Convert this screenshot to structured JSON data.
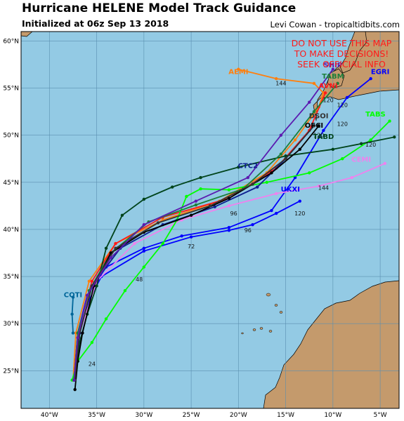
{
  "header": {
    "title": "Hurricane HELENE Model Track Guidance",
    "subtitle": "Initialized at 06z Sep 13 2018",
    "credit": "Levi Cowan - tropicaltidbits.com"
  },
  "warning": {
    "lines": [
      "DO NOT USE THIS MAP",
      "TO MAKE DECISIONS!",
      "SEEK OFFICIAL INFO"
    ],
    "color": "#ff1a1a"
  },
  "colors": {
    "ocean": "#93cae4",
    "land": "#c49a6c",
    "grid": "#5b8fb0"
  },
  "axes": {
    "lon_range": [
      -43,
      -3
    ],
    "lat_range": [
      21,
      61
    ],
    "lon_ticks": [
      -40,
      -35,
      -30,
      -25,
      -20,
      -15,
      -10,
      -5
    ],
    "lon_tick_labels": [
      "40°W",
      "35°W",
      "30°W",
      "25°W",
      "20°W",
      "15°W",
      "10°W",
      "5°W"
    ],
    "lat_ticks": [
      25,
      30,
      35,
      40,
      45,
      50,
      55,
      60
    ],
    "lat_tick_labels": [
      "25°N",
      "30°N",
      "35°N",
      "40°N",
      "45°N",
      "50°N",
      "55°N",
      "60°N"
    ]
  },
  "models": [
    {
      "name": "AEMI",
      "color": "#ff7f0e",
      "label_at": [
        -20,
        56.5
      ],
      "track": [
        [
          -37.5,
          24
        ],
        [
          -37.2,
          29
        ],
        [
          -35.8,
          34.5
        ],
        [
          -33,
          38.5
        ],
        [
          -28,
          41
        ],
        [
          -22,
          43
        ],
        [
          -17,
          46
        ],
        [
          -14,
          49.5
        ],
        [
          -11.5,
          53
        ],
        [
          -11,
          54.5
        ],
        [
          -12,
          55.5
        ],
        [
          -16,
          56
        ],
        [
          -20,
          57
        ]
      ],
      "hours": [
        {
          "text": "144",
          "at": [
            -15.5,
            55.3
          ]
        }
      ]
    },
    {
      "name": "AVNI",
      "color": "#ff1a1a",
      "label_at": [
        -10.5,
        55
      ],
      "track": [
        [
          -37.4,
          24
        ],
        [
          -37,
          29
        ],
        [
          -35.5,
          34.5
        ],
        [
          -33,
          38.5
        ],
        [
          -28,
          41.3
        ],
        [
          -21,
          43.3
        ],
        [
          -16,
          46.5
        ],
        [
          -12.5,
          50.5
        ],
        [
          -10.8,
          54.5
        ]
      ],
      "hours": [
        {
          "text": "120",
          "at": [
            -10.5,
            53.5
          ]
        }
      ]
    },
    {
      "name": "EGRI",
      "color": "#0000ff",
      "label_at": [
        -5,
        56.5
      ],
      "track": [
        [
          -37.4,
          24
        ],
        [
          -37,
          29
        ],
        [
          -36,
          33
        ],
        [
          -34,
          36
        ],
        [
          -30,
          38
        ],
        [
          -26,
          39.3
        ],
        [
          -21,
          40.2
        ],
        [
          -16.5,
          42
        ],
        [
          -14,
          45.5
        ],
        [
          -11,
          50.5
        ],
        [
          -8.5,
          54
        ],
        [
          -6,
          56
        ]
      ],
      "hours": [
        {
          "text": "120",
          "at": [
            -9,
            51
          ]
        }
      ]
    },
    {
      "name": "UKXI",
      "color": "#0000ff",
      "label_at": [
        -14.5,
        44
      ],
      "track": [
        [
          -37.3,
          24
        ],
        [
          -36.8,
          29
        ],
        [
          -35.8,
          32.5
        ],
        [
          -34.5,
          35
        ],
        [
          -30,
          37.7
        ],
        [
          -25,
          39.2
        ],
        [
          -21,
          39.9
        ],
        [
          -18.5,
          40.5
        ],
        [
          -16,
          41.7
        ],
        [
          -13.5,
          43
        ]
      ],
      "hours": [
        {
          "text": "72",
          "at": [
            -25,
            38
          ]
        },
        {
          "text": "96",
          "at": [
            -19,
            39.7
          ]
        },
        {
          "text": "120",
          "at": [
            -13.5,
            41.5
          ]
        }
      ]
    },
    {
      "name": "CEMI",
      "color": "#ee82ee",
      "label_at": [
        -7,
        47.2
      ],
      "track": [
        [
          -37.4,
          24
        ],
        [
          -36.8,
          29
        ],
        [
          -35,
          34.5
        ],
        [
          -31,
          38.5
        ],
        [
          -26,
          41
        ],
        [
          -21,
          42.5
        ],
        [
          -16,
          43.8
        ],
        [
          -11.5,
          44.6
        ],
        [
          -8,
          45.5
        ],
        [
          -4.5,
          47
        ]
      ],
      "hours": [
        {
          "text": "96",
          "at": [
            -20.5,
            41.5
          ]
        },
        {
          "text": "144",
          "at": [
            -11,
            44.2
          ]
        }
      ]
    },
    {
      "name": "TABS",
      "color": "#00ff00",
      "label_at": [
        -5.5,
        52
      ],
      "track": [
        [
          -37.6,
          24
        ],
        [
          -37,
          26
        ],
        [
          -35.5,
          28
        ],
        [
          -34,
          30.5
        ],
        [
          -32,
          33.5
        ],
        [
          -30,
          36
        ],
        [
          -28,
          38.5
        ],
        [
          -26.5,
          41
        ],
        [
          -25.5,
          43.5
        ],
        [
          -24,
          44.3
        ],
        [
          -21,
          44.2
        ],
        [
          -17,
          45
        ],
        [
          -12.5,
          46
        ],
        [
          -9,
          47.5
        ],
        [
          -6,
          49.5
        ],
        [
          -4,
          51.5
        ]
      ],
      "hours": [
        {
          "text": "24",
          "at": [
            -35.5,
            25.5
          ]
        },
        {
          "text": "48",
          "at": [
            -30.5,
            34.5
          ]
        }
      ]
    },
    {
      "name": "TABD",
      "color": "#00441b",
      "label_at": [
        -11,
        49.6
      ],
      "track": [
        [
          -37.4,
          24
        ],
        [
          -36.8,
          28
        ],
        [
          -36,
          31
        ],
        [
          -35,
          34
        ],
        [
          -34,
          38
        ],
        [
          -32.3,
          41.5
        ],
        [
          -30,
          43.2
        ],
        [
          -27,
          44.5
        ],
        [
          -24,
          45.5
        ],
        [
          -20,
          46.6
        ],
        [
          -15,
          47.8
        ],
        [
          -10,
          48.5
        ],
        [
          -7,
          49.1
        ],
        [
          -3.5,
          49.8
        ]
      ],
      "hours": [
        {
          "text": "120",
          "at": [
            -6,
            48.8
          ]
        }
      ]
    },
    {
      "name": "TABM",
      "color": "#1b7f3a",
      "label_at": [
        -10,
        56
      ],
      "track": [
        [
          -37.4,
          24
        ],
        [
          -37,
          29
        ],
        [
          -35.8,
          33.5
        ],
        [
          -33.5,
          37.5
        ],
        [
          -29.5,
          40.8
        ],
        [
          -24.5,
          42.6
        ],
        [
          -19.5,
          44.3
        ],
        [
          -15.5,
          48
        ],
        [
          -12,
          52.5
        ],
        [
          -9.5,
          55.5
        ]
      ],
      "hours": [
        {
          "text": "120",
          "at": [
            -9,
            53
          ]
        }
      ]
    },
    {
      "name": "CTC2",
      "color": "#0d1f8f",
      "label_at": [
        -19,
        46.5
      ],
      "track": [
        [
          -37.4,
          24
        ],
        [
          -36.8,
          29
        ],
        [
          -35.5,
          34
        ],
        [
          -32.5,
          38
        ],
        [
          -28,
          40.5
        ],
        [
          -22.5,
          42.4
        ],
        [
          -18,
          44.5
        ],
        [
          -15,
          47.5
        ],
        [
          -12,
          51
        ]
      ],
      "hours": []
    },
    {
      "name": "COTI",
      "color": "#006699",
      "label_at": [
        -37.5,
        32.8
      ],
      "track": [
        [
          -37.5,
          29
        ],
        [
          -37.6,
          31
        ],
        [
          -37.5,
          32.8
        ]
      ],
      "hours": []
    },
    {
      "name": "OFCI",
      "color": "#000000",
      "label_at": [
        -12,
        50.8
      ],
      "track": [
        [
          -37.3,
          23
        ],
        [
          -37,
          26
        ],
        [
          -36.5,
          29
        ],
        [
          -35.3,
          34
        ],
        [
          -33.5,
          37.5
        ],
        [
          -30,
          39.7
        ],
        [
          -25,
          41.5
        ],
        [
          -21,
          43.3
        ],
        [
          -16.5,
          46
        ],
        [
          -13.5,
          48.5
        ],
        [
          -11.5,
          51
        ]
      ],
      "hours": [
        {
          "text": "120",
          "at": [
            -11.5,
            49.8
          ]
        }
      ]
    },
    {
      "name": "DSOI",
      "color": "#333333",
      "label_at": [
        -11.5,
        51.8
      ],
      "track": [
        [
          -37.3,
          24
        ],
        [
          -36.9,
          28.5
        ],
        [
          -35.5,
          34
        ],
        [
          -33,
          38
        ],
        [
          -28.5,
          40.7
        ],
        [
          -23,
          42.5
        ],
        [
          -18.5,
          44.8
        ],
        [
          -15,
          47.5
        ],
        [
          -12,
          51
        ]
      ],
      "hours": []
    },
    {
      "name": "SHIP",
      "color": "#5b1bb0",
      "label_at": [
        -10,
        57.2
      ],
      "track": [
        [
          -37.4,
          24
        ],
        [
          -37,
          28.5
        ],
        [
          -36,
          33
        ],
        [
          -33.5,
          37
        ],
        [
          -30,
          40.5
        ],
        [
          -24.5,
          43
        ],
        [
          -19,
          45.5
        ],
        [
          -15.5,
          50
        ],
        [
          -12.5,
          53.5
        ],
        [
          -10,
          57
        ]
      ],
      "hours": []
    }
  ]
}
